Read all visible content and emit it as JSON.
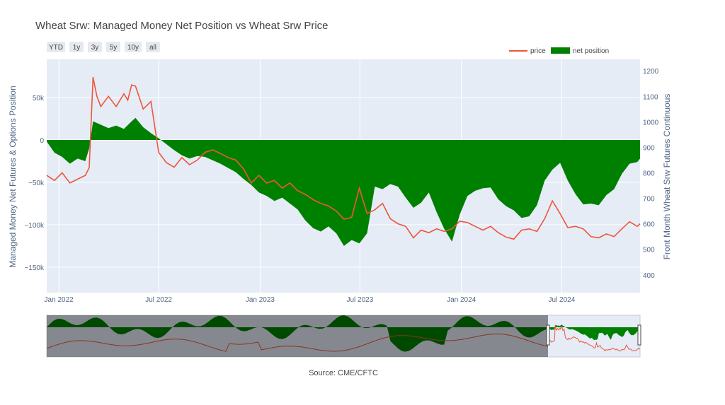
{
  "chart_data": {
    "type": "area",
    "title": "Wheat Srw: Managed Money Net Position vs Wheat Srw Price",
    "ylabel_left": "Managed Money Net Futures & Options Position",
    "ylabel_right": "Front Month Wheat Srw Futures Continuous",
    "source": "Source: CME/CFTC",
    "range_buttons": [
      "YTD",
      "1y",
      "3y",
      "5y",
      "10y",
      "all"
    ],
    "legend": [
      {
        "name": "price",
        "color": "#ef553b",
        "kind": "line"
      },
      {
        "name": "net position",
        "color": "#008000",
        "kind": "area"
      }
    ],
    "x_start": "2021-12-10",
    "x_end": "2024-11-20",
    "x_ticks": [
      {
        "date": "2022-01-01",
        "label": "Jan 2022"
      },
      {
        "date": "2022-07-01",
        "label": "Jul 2022"
      },
      {
        "date": "2023-01-01",
        "label": "Jan 2023"
      },
      {
        "date": "2023-07-01",
        "label": "Jul 2023"
      },
      {
        "date": "2024-01-01",
        "label": "Jan 2024"
      },
      {
        "date": "2024-07-01",
        "label": "Jul 2024"
      }
    ],
    "ylim_left": [
      -180000,
      95000
    ],
    "y_ticks_left": [
      {
        "v": 50000,
        "label": "50k"
      },
      {
        "v": 0,
        "label": "0"
      },
      {
        "v": -50000,
        "label": "−50k"
      },
      {
        "v": -100000,
        "label": "−100k"
      },
      {
        "v": -150000,
        "label": "−150k"
      }
    ],
    "ylim_right": [
      330,
      1245
    ],
    "y_ticks_right": [
      400,
      500,
      600,
      700,
      800,
      900,
      1000,
      1100,
      1200
    ],
    "grid": true,
    "legend_position": "top-right",
    "series": [
      {
        "name": "net position",
        "axis": "left",
        "color": "#008000",
        "x": [
          "2021-12-10",
          "2021-12-24",
          "2022-01-07",
          "2022-01-21",
          "2022-02-04",
          "2022-02-18",
          "2022-02-25",
          "2022-03-04",
          "2022-03-18",
          "2022-04-01",
          "2022-04-15",
          "2022-04-29",
          "2022-05-13",
          "2022-05-20",
          "2022-06-03",
          "2022-06-17",
          "2022-07-01",
          "2022-07-15",
          "2022-07-29",
          "2022-08-12",
          "2022-08-26",
          "2022-09-09",
          "2022-09-23",
          "2022-10-07",
          "2022-10-21",
          "2022-11-04",
          "2022-11-18",
          "2022-12-02",
          "2022-12-16",
          "2022-12-30",
          "2023-01-13",
          "2023-01-27",
          "2023-02-10",
          "2023-02-24",
          "2023-03-10",
          "2023-03-24",
          "2023-04-07",
          "2023-04-21",
          "2023-05-05",
          "2023-05-19",
          "2023-06-02",
          "2023-06-16",
          "2023-06-30",
          "2023-07-14",
          "2023-07-28",
          "2023-08-11",
          "2023-08-25",
          "2023-09-08",
          "2023-09-22",
          "2023-10-06",
          "2023-10-20",
          "2023-11-03",
          "2023-11-17",
          "2023-12-01",
          "2023-12-15",
          "2023-12-29",
          "2024-01-12",
          "2024-01-26",
          "2024-02-09",
          "2024-02-23",
          "2024-03-08",
          "2024-03-22",
          "2024-04-05",
          "2024-04-19",
          "2024-05-03",
          "2024-05-17",
          "2024-05-31",
          "2024-06-14",
          "2024-06-28",
          "2024-07-12",
          "2024-07-26",
          "2024-08-09",
          "2024-08-23",
          "2024-09-06",
          "2024-09-20",
          "2024-10-04",
          "2024-10-18",
          "2024-11-01",
          "2024-11-15",
          "2024-11-20"
        ],
        "values": [
          -2000,
          -15000,
          -20000,
          -28000,
          -22000,
          -25000,
          -10000,
          22000,
          18000,
          14000,
          17000,
          13000,
          22000,
          26000,
          15000,
          8000,
          2000,
          -5000,
          -12000,
          -18000,
          -22000,
          -19000,
          -20000,
          -24000,
          -28000,
          -33000,
          -38000,
          -46000,
          -53000,
          -62000,
          -66000,
          -72000,
          -68000,
          -75000,
          -82000,
          -95000,
          -104000,
          -108000,
          -102000,
          -110000,
          -125000,
          -118000,
          -122000,
          -110000,
          -55000,
          -58000,
          -52000,
          -55000,
          -68000,
          -80000,
          -74000,
          -62000,
          -85000,
          -105000,
          -120000,
          -88000,
          -66000,
          -60000,
          -57000,
          -56000,
          -70000,
          -78000,
          -83000,
          -92000,
          -90000,
          -77000,
          -48000,
          -35000,
          -27000,
          -48000,
          -64000,
          -76000,
          -75000,
          -77000,
          -65000,
          -58000,
          -40000,
          -28000,
          -26000,
          -22000
        ]
      },
      {
        "name": "price",
        "axis": "right",
        "color": "#ef553b",
        "x": [
          "2021-12-10",
          "2021-12-24",
          "2022-01-07",
          "2022-01-21",
          "2022-02-04",
          "2022-02-18",
          "2022-02-25",
          "2022-03-04",
          "2022-03-11",
          "2022-03-18",
          "2022-04-01",
          "2022-04-15",
          "2022-04-29",
          "2022-05-06",
          "2022-05-13",
          "2022-05-20",
          "2022-06-03",
          "2022-06-17",
          "2022-07-01",
          "2022-07-15",
          "2022-07-29",
          "2022-08-12",
          "2022-08-26",
          "2022-09-09",
          "2022-09-23",
          "2022-10-07",
          "2022-10-21",
          "2022-11-04",
          "2022-11-18",
          "2022-12-02",
          "2022-12-16",
          "2022-12-30",
          "2023-01-13",
          "2023-01-27",
          "2023-02-10",
          "2023-02-24",
          "2023-03-10",
          "2023-03-24",
          "2023-04-07",
          "2023-04-21",
          "2023-05-05",
          "2023-05-19",
          "2023-06-02",
          "2023-06-16",
          "2023-06-30",
          "2023-07-14",
          "2023-07-28",
          "2023-08-11",
          "2023-08-25",
          "2023-09-08",
          "2023-09-22",
          "2023-10-06",
          "2023-10-20",
          "2023-11-03",
          "2023-11-17",
          "2023-12-01",
          "2023-12-15",
          "2023-12-29",
          "2024-01-12",
          "2024-01-26",
          "2024-02-09",
          "2024-02-23",
          "2024-03-08",
          "2024-03-22",
          "2024-04-05",
          "2024-04-19",
          "2024-05-03",
          "2024-05-17",
          "2024-05-31",
          "2024-06-14",
          "2024-06-28",
          "2024-07-12",
          "2024-07-26",
          "2024-08-09",
          "2024-08-23",
          "2024-09-06",
          "2024-09-20",
          "2024-10-04",
          "2024-10-18",
          "2024-11-01",
          "2024-11-15",
          "2024-11-20"
        ],
        "values": [
          790,
          770,
          800,
          760,
          775,
          790,
          820,
          1175,
          1100,
          1060,
          1100,
          1060,
          1110,
          1085,
          1145,
          1140,
          1050,
          1080,
          880,
          840,
          822,
          860,
          832,
          850,
          880,
          890,
          876,
          860,
          850,
          815,
          760,
          790,
          760,
          770,
          740,
          760,
          730,
          715,
          695,
          680,
          670,
          650,
          618,
          625,
          740,
          640,
          655,
          680,
          620,
          600,
          590,
          545,
          575,
          565,
          580,
          570,
          580,
          610,
          605,
          590,
          575,
          590,
          565,
          548,
          540,
          575,
          580,
          570,
          620,
          690,
          640,
          585,
          590,
          580,
          550,
          545,
          560,
          550,
          580,
          608,
          590,
          600
        ]
      }
    ]
  }
}
